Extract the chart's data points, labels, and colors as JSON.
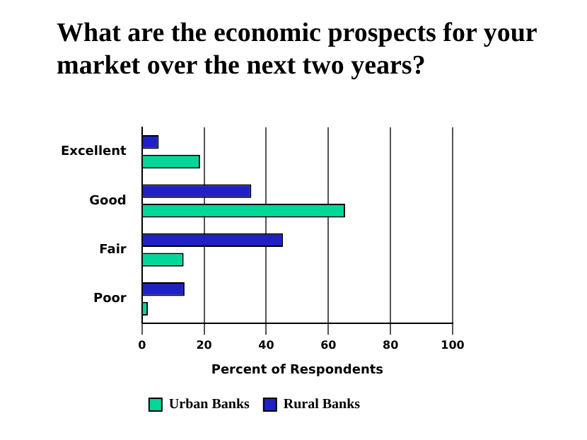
{
  "chart_data": {
    "type": "bar",
    "orientation": "horizontal",
    "title": "What are the economic prospects for your market over the next two years?",
    "categories": [
      "Excellent",
      "Good",
      "Fair",
      "Poor"
    ],
    "series": [
      {
        "name": "Urban Banks",
        "color": "#00d89a",
        "values": [
          18.7,
          65.4,
          13.4,
          1.9
        ]
      },
      {
        "name": "Rural Banks",
        "color": "#2020c8",
        "values": [
          5.4,
          35.2,
          45.4,
          13.7
        ]
      }
    ],
    "xlabel": "Percent of Respondents",
    "xlim": [
      0,
      100
    ],
    "xticks": [
      0,
      20,
      40,
      60,
      80,
      100
    ],
    "grid": "x",
    "legend": "bottom"
  }
}
